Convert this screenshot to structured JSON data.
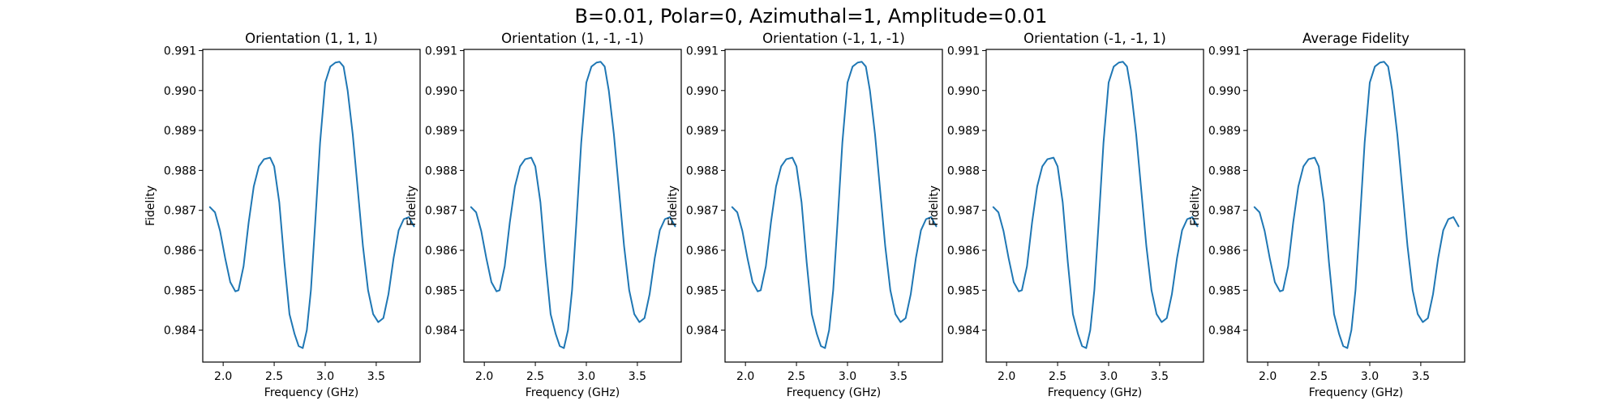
{
  "figure": {
    "suptitle": "B=0.01, Polar=0, Azimuthal=1, Amplitude=0.01"
  },
  "colors": {
    "line": "#1f77b4",
    "axes": "#000000",
    "background": "#ffffff"
  },
  "chart_data": [
    {
      "type": "line",
      "title": "Orientation (1, 1, 1)",
      "xlabel": "Frequency (GHz)",
      "ylabel": "Fidelity",
      "xlim": [
        1.8,
        3.93
      ],
      "ylim": [
        0.9832,
        0.99103
      ],
      "xticks": [
        2.0,
        2.5,
        3.0,
        3.5
      ],
      "xticklabels": [
        "2.0",
        "2.5",
        "3.0",
        "3.5"
      ],
      "yticks": [
        0.984,
        0.985,
        0.986,
        0.987,
        0.988,
        0.989,
        0.99,
        0.991
      ],
      "yticklabels": [
        "0.984",
        "0.985",
        "0.986",
        "0.987",
        "0.988",
        "0.989",
        "0.990",
        "0.991"
      ],
      "grid": false,
      "series": [
        {
          "x": [
            1.87,
            1.92,
            1.97,
            2.02,
            2.07,
            2.12,
            2.15,
            2.2,
            2.25,
            2.3,
            2.35,
            2.4,
            2.46,
            2.5,
            2.55,
            2.6,
            2.65,
            2.7,
            2.74,
            2.78,
            2.82,
            2.86,
            2.9,
            2.95,
            3.0,
            3.05,
            3.1,
            3.14,
            3.18,
            3.22,
            3.27,
            3.32,
            3.37,
            3.42,
            3.47,
            3.52,
            3.57,
            3.62,
            3.67,
            3.72,
            3.77,
            3.82,
            3.87
          ],
          "y": [
            0.98708,
            0.98695,
            0.98648,
            0.9858,
            0.9852,
            0.98497,
            0.985,
            0.9856,
            0.9867,
            0.9876,
            0.9881,
            0.98828,
            0.98832,
            0.9881,
            0.9872,
            0.9857,
            0.9844,
            0.9839,
            0.9836,
            0.98355,
            0.984,
            0.985,
            0.9866,
            0.9887,
            0.9902,
            0.9906,
            0.9907,
            0.99072,
            0.9906,
            0.99,
            0.9889,
            0.9875,
            0.9861,
            0.985,
            0.9844,
            0.9842,
            0.9843,
            0.9849,
            0.9858,
            0.9865,
            0.98678,
            0.98683,
            0.9866
          ]
        }
      ]
    },
    {
      "type": "line",
      "title": "Orientation (1, -1, -1)",
      "xlabel": "Frequency (GHz)",
      "ylabel": "Fidelity",
      "xlim": [
        1.8,
        3.93
      ],
      "ylim": [
        0.9832,
        0.99103
      ],
      "xticks": [
        2.0,
        2.5,
        3.0,
        3.5
      ],
      "xticklabels": [
        "2.0",
        "2.5",
        "3.0",
        "3.5"
      ],
      "yticks": [
        0.984,
        0.985,
        0.986,
        0.987,
        0.988,
        0.989,
        0.99,
        0.991
      ],
      "yticklabels": [
        "0.984",
        "0.985",
        "0.986",
        "0.987",
        "0.988",
        "0.989",
        "0.990",
        "0.991"
      ],
      "grid": false,
      "series": [
        {
          "x": [
            1.87,
            1.92,
            1.97,
            2.02,
            2.07,
            2.12,
            2.15,
            2.2,
            2.25,
            2.3,
            2.35,
            2.4,
            2.46,
            2.5,
            2.55,
            2.6,
            2.65,
            2.7,
            2.74,
            2.78,
            2.82,
            2.86,
            2.9,
            2.95,
            3.0,
            3.05,
            3.1,
            3.14,
            3.18,
            3.22,
            3.27,
            3.32,
            3.37,
            3.42,
            3.47,
            3.52,
            3.57,
            3.62,
            3.67,
            3.72,
            3.77,
            3.82,
            3.87
          ],
          "y": [
            0.98708,
            0.98695,
            0.98648,
            0.9858,
            0.9852,
            0.98497,
            0.985,
            0.9856,
            0.9867,
            0.9876,
            0.9881,
            0.98828,
            0.98832,
            0.9881,
            0.9872,
            0.9857,
            0.9844,
            0.9839,
            0.9836,
            0.98355,
            0.984,
            0.985,
            0.9866,
            0.9887,
            0.9902,
            0.9906,
            0.9907,
            0.99072,
            0.9906,
            0.99,
            0.9889,
            0.9875,
            0.9861,
            0.985,
            0.9844,
            0.9842,
            0.9843,
            0.9849,
            0.9858,
            0.9865,
            0.98678,
            0.98683,
            0.9866
          ]
        }
      ]
    },
    {
      "type": "line",
      "title": "Orientation (-1, 1, -1)",
      "xlabel": "Frequency (GHz)",
      "ylabel": "Fidelity",
      "xlim": [
        1.8,
        3.93
      ],
      "ylim": [
        0.9832,
        0.99103
      ],
      "xticks": [
        2.0,
        2.5,
        3.0,
        3.5
      ],
      "xticklabels": [
        "2.0",
        "2.5",
        "3.0",
        "3.5"
      ],
      "yticks": [
        0.984,
        0.985,
        0.986,
        0.987,
        0.988,
        0.989,
        0.99,
        0.991
      ],
      "yticklabels": [
        "0.984",
        "0.985",
        "0.986",
        "0.987",
        "0.988",
        "0.989",
        "0.990",
        "0.991"
      ],
      "grid": false,
      "series": [
        {
          "x": [
            1.87,
            1.92,
            1.97,
            2.02,
            2.07,
            2.12,
            2.15,
            2.2,
            2.25,
            2.3,
            2.35,
            2.4,
            2.46,
            2.5,
            2.55,
            2.6,
            2.65,
            2.7,
            2.74,
            2.78,
            2.82,
            2.86,
            2.9,
            2.95,
            3.0,
            3.05,
            3.1,
            3.14,
            3.18,
            3.22,
            3.27,
            3.32,
            3.37,
            3.42,
            3.47,
            3.52,
            3.57,
            3.62,
            3.67,
            3.72,
            3.77,
            3.82,
            3.87
          ],
          "y": [
            0.98708,
            0.98695,
            0.98648,
            0.9858,
            0.9852,
            0.98497,
            0.985,
            0.9856,
            0.9867,
            0.9876,
            0.9881,
            0.98828,
            0.98832,
            0.9881,
            0.9872,
            0.9857,
            0.9844,
            0.9839,
            0.9836,
            0.98355,
            0.984,
            0.985,
            0.9866,
            0.9887,
            0.9902,
            0.9906,
            0.9907,
            0.99072,
            0.9906,
            0.99,
            0.9889,
            0.9875,
            0.9861,
            0.985,
            0.9844,
            0.9842,
            0.9843,
            0.9849,
            0.9858,
            0.9865,
            0.98678,
            0.98683,
            0.9866
          ]
        }
      ]
    },
    {
      "type": "line",
      "title": "Orientation (-1, -1, 1)",
      "xlabel": "Frequency (GHz)",
      "ylabel": "Fidelity",
      "xlim": [
        1.8,
        3.93
      ],
      "ylim": [
        0.9832,
        0.99103
      ],
      "xticks": [
        2.0,
        2.5,
        3.0,
        3.5
      ],
      "xticklabels": [
        "2.0",
        "2.5",
        "3.0",
        "3.5"
      ],
      "yticks": [
        0.984,
        0.985,
        0.986,
        0.987,
        0.988,
        0.989,
        0.99,
        0.991
      ],
      "yticklabels": [
        "0.984",
        "0.985",
        "0.986",
        "0.987",
        "0.988",
        "0.989",
        "0.990",
        "0.991"
      ],
      "grid": false,
      "series": [
        {
          "x": [
            1.87,
            1.92,
            1.97,
            2.02,
            2.07,
            2.12,
            2.15,
            2.2,
            2.25,
            2.3,
            2.35,
            2.4,
            2.46,
            2.5,
            2.55,
            2.6,
            2.65,
            2.7,
            2.74,
            2.78,
            2.82,
            2.86,
            2.9,
            2.95,
            3.0,
            3.05,
            3.1,
            3.14,
            3.18,
            3.22,
            3.27,
            3.32,
            3.37,
            3.42,
            3.47,
            3.52,
            3.57,
            3.62,
            3.67,
            3.72,
            3.77,
            3.82,
            3.87
          ],
          "y": [
            0.98708,
            0.98695,
            0.98648,
            0.9858,
            0.9852,
            0.98497,
            0.985,
            0.9856,
            0.9867,
            0.9876,
            0.9881,
            0.98828,
            0.98832,
            0.9881,
            0.9872,
            0.9857,
            0.9844,
            0.9839,
            0.9836,
            0.98355,
            0.984,
            0.985,
            0.9866,
            0.9887,
            0.9902,
            0.9906,
            0.9907,
            0.99072,
            0.9906,
            0.99,
            0.9889,
            0.9875,
            0.9861,
            0.985,
            0.9844,
            0.9842,
            0.9843,
            0.9849,
            0.9858,
            0.9865,
            0.98678,
            0.98683,
            0.9866
          ]
        }
      ]
    },
    {
      "type": "line",
      "title": "Average Fidelity",
      "xlabel": "Frequency (GHz)",
      "ylabel": "Fidelity",
      "xlim": [
        1.8,
        3.93
      ],
      "ylim": [
        0.9832,
        0.99103
      ],
      "xticks": [
        2.0,
        2.5,
        3.0,
        3.5
      ],
      "xticklabels": [
        "2.0",
        "2.5",
        "3.0",
        "3.5"
      ],
      "yticks": [
        0.984,
        0.985,
        0.986,
        0.987,
        0.988,
        0.989,
        0.99,
        0.991
      ],
      "yticklabels": [
        "0.984",
        "0.985",
        "0.986",
        "0.987",
        "0.988",
        "0.989",
        "0.990",
        "0.991"
      ],
      "grid": false,
      "series": [
        {
          "x": [
            1.87,
            1.92,
            1.97,
            2.02,
            2.07,
            2.12,
            2.15,
            2.2,
            2.25,
            2.3,
            2.35,
            2.4,
            2.46,
            2.5,
            2.55,
            2.6,
            2.65,
            2.7,
            2.74,
            2.78,
            2.82,
            2.86,
            2.9,
            2.95,
            3.0,
            3.05,
            3.1,
            3.14,
            3.18,
            3.22,
            3.27,
            3.32,
            3.37,
            3.42,
            3.47,
            3.52,
            3.57,
            3.62,
            3.67,
            3.72,
            3.77,
            3.82,
            3.87
          ],
          "y": [
            0.98708,
            0.98695,
            0.98648,
            0.9858,
            0.9852,
            0.98497,
            0.985,
            0.9856,
            0.9867,
            0.9876,
            0.9881,
            0.98828,
            0.98832,
            0.9881,
            0.9872,
            0.9857,
            0.9844,
            0.9839,
            0.9836,
            0.98355,
            0.984,
            0.985,
            0.9866,
            0.9887,
            0.9902,
            0.9906,
            0.9907,
            0.99072,
            0.9906,
            0.99,
            0.9889,
            0.9875,
            0.9861,
            0.985,
            0.9844,
            0.9842,
            0.9843,
            0.9849,
            0.9858,
            0.9865,
            0.98678,
            0.98683,
            0.9866
          ]
        }
      ]
    }
  ]
}
